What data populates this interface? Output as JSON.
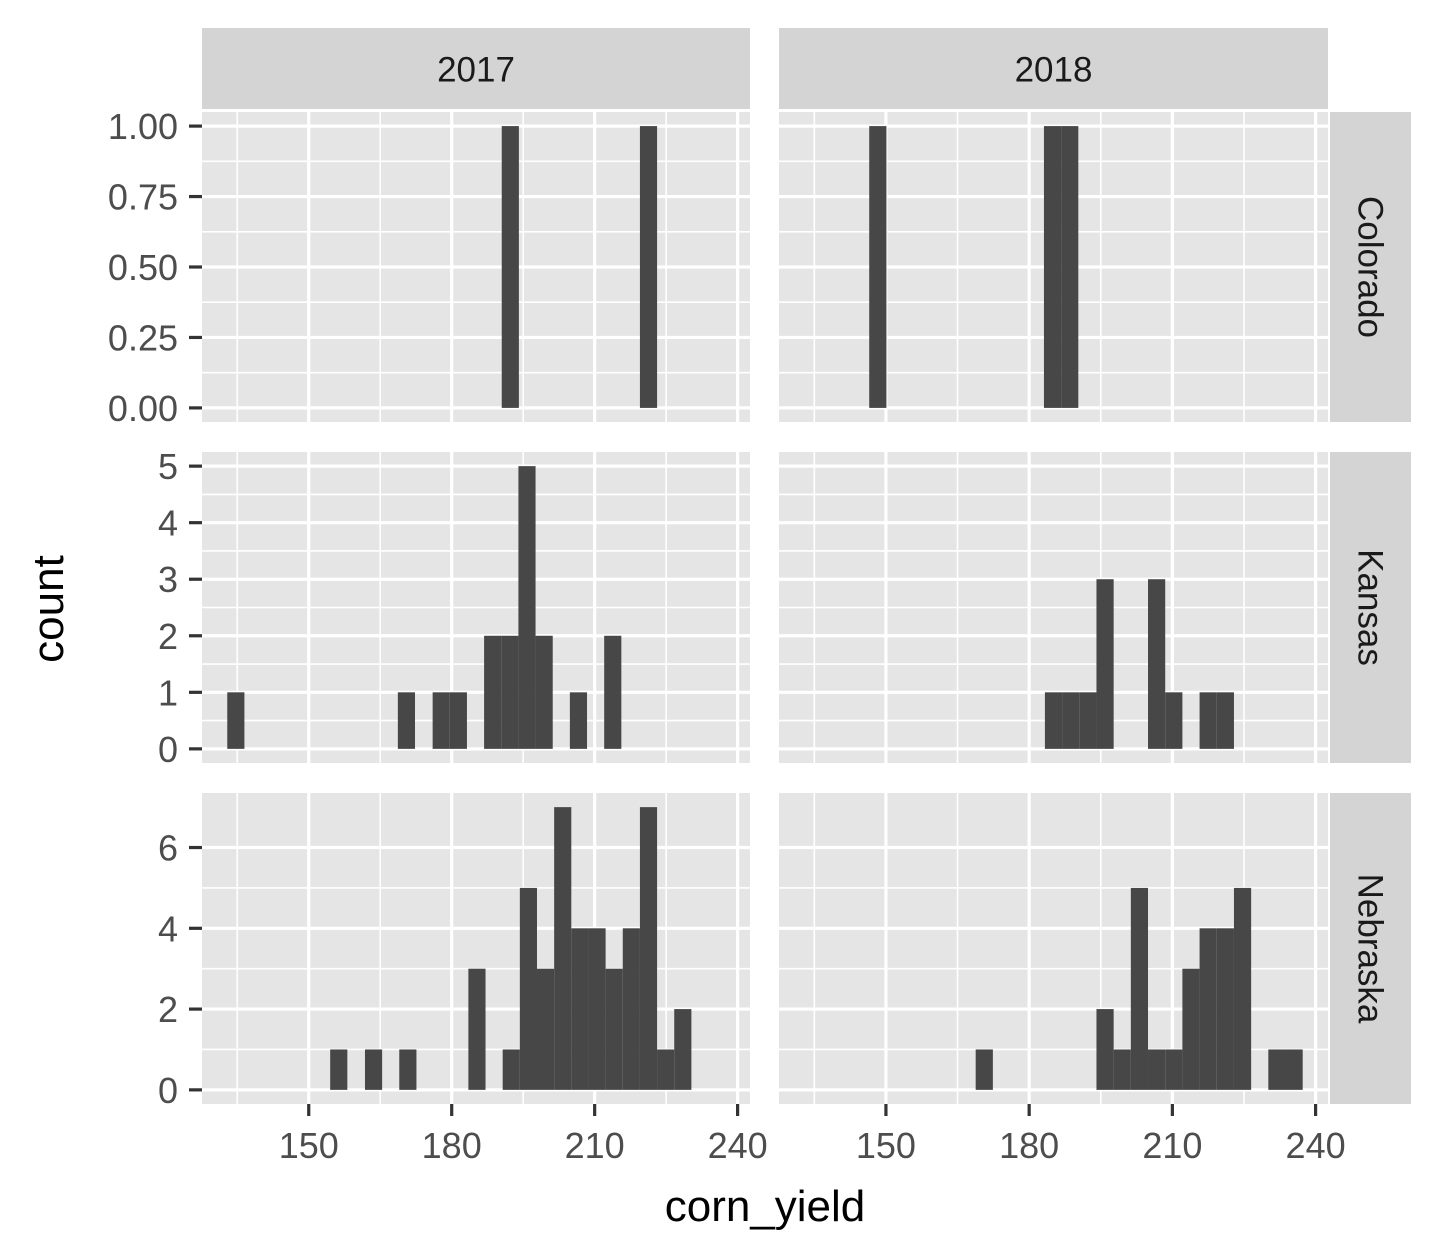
{
  "chart_data": {
    "type": "histogram",
    "xlabel": "corn_yield",
    "ylabel": "count",
    "facet_columns": [
      "2017",
      "2018"
    ],
    "facet_rows": [
      "Colorado",
      "Kansas",
      "Nebraska"
    ],
    "x_range": [
      127.6,
      242.6
    ],
    "x_ticks": [
      150,
      180,
      210,
      240
    ],
    "x_tick_labels": [
      "150",
      "180",
      "210",
      "240"
    ],
    "bin_width": 3.6,
    "rows": [
      {
        "name": "Colorado",
        "y_range": [
          -0.05,
          1.05
        ],
        "y_ticks": [
          0,
          0.25,
          0.5,
          0.75,
          1
        ],
        "y_tick_labels": [
          "0.00",
          "0.25",
          "0.50",
          "0.75",
          "1.00"
        ],
        "panels": [
          {
            "column": "2017",
            "bins": [
              {
                "x0": 190.5,
                "x1": 194.1,
                "count": 1
              },
              {
                "x0": 219.5,
                "x1": 223.1,
                "count": 1
              }
            ]
          },
          {
            "column": "2018",
            "bins": [
              {
                "x0": 146.5,
                "x1": 150.1,
                "count": 1
              },
              {
                "x0": 183.1,
                "x1": 186.7,
                "count": 1
              },
              {
                "x0": 186.7,
                "x1": 190.3,
                "count": 1
              }
            ]
          }
        ]
      },
      {
        "name": "Kansas",
        "y_range": [
          -0.25,
          5.25
        ],
        "y_ticks": [
          0,
          1,
          2,
          3,
          4,
          5
        ],
        "y_tick_labels": [
          "0",
          "1",
          "2",
          "3",
          "4",
          "5"
        ],
        "panels": [
          {
            "column": "2017",
            "bins": [
              {
                "x0": 132.9,
                "x1": 136.5,
                "count": 1
              },
              {
                "x0": 168.7,
                "x1": 172.3,
                "count": 1
              },
              {
                "x0": 176.0,
                "x1": 179.6,
                "count": 1
              },
              {
                "x0": 179.6,
                "x1": 183.2,
                "count": 1
              },
              {
                "x0": 186.8,
                "x1": 190.4,
                "count": 2
              },
              {
                "x0": 190.4,
                "x1": 194.0,
                "count": 2
              },
              {
                "x0": 194.0,
                "x1": 197.6,
                "count": 5
              },
              {
                "x0": 197.6,
                "x1": 201.2,
                "count": 2
              },
              {
                "x0": 204.8,
                "x1": 208.4,
                "count": 1
              },
              {
                "x0": 212.0,
                "x1": 215.6,
                "count": 2
              }
            ]
          },
          {
            "column": "2018",
            "bins": [
              {
                "x0": 183.3,
                "x1": 186.9,
                "count": 1
              },
              {
                "x0": 186.9,
                "x1": 190.5,
                "count": 1
              },
              {
                "x0": 190.5,
                "x1": 194.1,
                "count": 1
              },
              {
                "x0": 194.1,
                "x1": 197.7,
                "count": 3
              },
              {
                "x0": 204.9,
                "x1": 208.5,
                "count": 3
              },
              {
                "x0": 208.5,
                "x1": 212.1,
                "count": 1
              },
              {
                "x0": 215.7,
                "x1": 219.3,
                "count": 1
              },
              {
                "x0": 219.3,
                "x1": 222.9,
                "count": 1
              }
            ]
          }
        ]
      },
      {
        "name": "Nebraska",
        "y_range": [
          -0.35,
          7.35
        ],
        "y_ticks": [
          0,
          2,
          4,
          6
        ],
        "y_tick_labels": [
          "0",
          "2",
          "4",
          "6"
        ],
        "panels": [
          {
            "column": "2017",
            "bins": [
              {
                "x0": 154.5,
                "x1": 158.1,
                "count": 1
              },
              {
                "x0": 161.8,
                "x1": 165.4,
                "count": 1
              },
              {
                "x0": 169.0,
                "x1": 172.6,
                "count": 1
              },
              {
                "x0": 183.5,
                "x1": 187.1,
                "count": 3
              },
              {
                "x0": 190.7,
                "x1": 194.3,
                "count": 1
              },
              {
                "x0": 194.3,
                "x1": 197.9,
                "count": 5
              },
              {
                "x0": 197.9,
                "x1": 201.5,
                "count": 3
              },
              {
                "x0": 201.5,
                "x1": 205.1,
                "count": 7
              },
              {
                "x0": 205.1,
                "x1": 208.7,
                "count": 4
              },
              {
                "x0": 208.7,
                "x1": 212.3,
                "count": 4
              },
              {
                "x0": 212.3,
                "x1": 215.9,
                "count": 3
              },
              {
                "x0": 215.9,
                "x1": 219.5,
                "count": 4
              },
              {
                "x0": 219.5,
                "x1": 223.1,
                "count": 7
              },
              {
                "x0": 223.1,
                "x1": 226.7,
                "count": 1
              },
              {
                "x0": 226.7,
                "x1": 230.3,
                "count": 2
              }
            ]
          },
          {
            "column": "2018",
            "bins": [
              {
                "x0": 168.8,
                "x1": 172.4,
                "count": 1
              },
              {
                "x0": 194.1,
                "x1": 197.7,
                "count": 2
              },
              {
                "x0": 197.7,
                "x1": 201.3,
                "count": 1
              },
              {
                "x0": 201.3,
                "x1": 204.9,
                "count": 5
              },
              {
                "x0": 204.9,
                "x1": 208.5,
                "count": 1
              },
              {
                "x0": 208.5,
                "x1": 212.1,
                "count": 1
              },
              {
                "x0": 212.1,
                "x1": 215.7,
                "count": 3
              },
              {
                "x0": 215.7,
                "x1": 219.3,
                "count": 4
              },
              {
                "x0": 219.3,
                "x1": 222.9,
                "count": 4
              },
              {
                "x0": 222.9,
                "x1": 226.5,
                "count": 5
              },
              {
                "x0": 230.1,
                "x1": 233.7,
                "count": 1
              },
              {
                "x0": 233.7,
                "x1": 237.3,
                "count": 1
              }
            ]
          }
        ]
      }
    ],
    "colors": {
      "bar": "#474747",
      "panel_background": "#e5e5e5",
      "grid": "#ffffff",
      "strip_background": "#d4d4d4",
      "strip_text": "#1a1a1a",
      "tick_label": "#4d4d4d",
      "axis_title": "#000000"
    }
  }
}
